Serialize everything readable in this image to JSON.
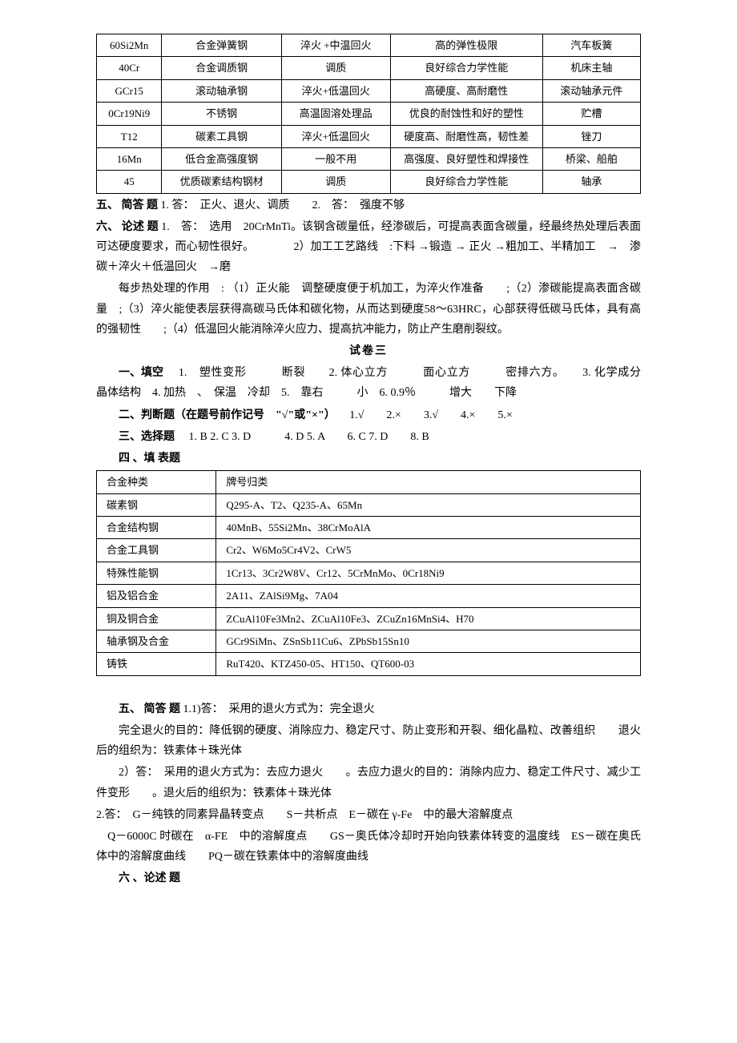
{
  "table1": {
    "rows": [
      [
        "60Si2Mn",
        "合金弹簧钢",
        "淬火 +中温回火",
        "高的弹性极限",
        "汽车板簧"
      ],
      [
        "40Cr",
        "合金调质钢",
        "调质",
        "良好综合力学性能",
        "机床主轴"
      ],
      [
        "GCr15",
        "滚动轴承钢",
        "淬火+低温回火",
        "高硬度、高耐磨性",
        "滚动轴承元件"
      ],
      [
        "0Cr19Ni9",
        "不锈钢",
        "高温固溶处理品",
        "优良的耐蚀性和好的塑性",
        "贮槽"
      ],
      [
        "T12",
        "碳素工具钢",
        "淬火+低温回火",
        "硬度高、耐磨性高，韧性差",
        "锉刀"
      ],
      [
        "16Mn",
        "低合金高强度钢",
        "一般不用",
        "高强度、良好塑性和焊接性",
        "桥梁、船舶"
      ],
      [
        "45",
        "优质碳素结构钢材",
        "调质",
        "良好综合力学性能",
        "轴承"
      ]
    ]
  },
  "sec5": {
    "title": "五、 简答 题",
    "p1a": "1. 答：　正火、退火、调质　　2.　答：　强度不够"
  },
  "sec6": {
    "title": "六、 论述 题",
    "p1": "1.　答：　选用　20CrMnTi。该钢含碳量低，经渗碳后，可提高表面含碳量，经最终热处理后表面可达硬度要求，而心韧性很好。　　　　2）加工工艺路线　:下料 →锻造 → 正火 →粗加工、半精加工　→　渗碳＋淬火＋低温回火　→磨",
    "p2": "每步热处理的作用　: （1）正火能　调整硬度便于机加工，为淬火作准备　　;（2）渗碳能提高表面含碳量　;（3）淬火能使表层获得高碳马氏体和碳化物，从而达到硬度58～63HRC，心部获得低碳马氏体，具有高的强韧性　　;（4）低温回火能消除淬火应力、提高抗冲能力，防止产生磨削裂纹。"
  },
  "paper3": {
    "header": "试卷三",
    "fill": {
      "title": "一、填空",
      "body": "　1.　塑性变形　　　断裂　　2. 体心立方　　　面心立方　　　密排六方。　　3. 化学成分　　晶体结构　4. 加热　、　保温　冷却　5.　靠右　　　小　6. 0.9％　　　增大　　下降"
    },
    "judge": {
      "title": "二、判断题（在题号前作记号　\"√\"或\"×\"）",
      "body": "　1.√　　2.×　　3.√　　4.×　　5.×"
    },
    "choice": {
      "title": "三、选择题",
      "body": "　1. B 2. C 3. D　　　4. D 5. A　　6. C 7. D　　8. B"
    },
    "tabletitle": "四 、填 表题"
  },
  "table2": {
    "header": [
      "合金种类",
      "牌号归类"
    ],
    "rows": [
      [
        "碳素钢",
        "Q295-A、T2、Q235-A、65Mn"
      ],
      [
        "合金结构钢",
        "40MnB、55Si2Mn、38CrMoAlA"
      ],
      [
        "合金工具钢",
        "Cr2、W6Mo5Cr4V2、CrW5"
      ],
      [
        "特殊性能钢",
        "1Cr13、3Cr2W8V、Cr12、5CrMnMo、0Cr18Ni9"
      ],
      [
        "铝及铝合金",
        "2A11、ZAlSi9Mg、7A04"
      ],
      [
        "铜及铜合金",
        "ZCuAl10Fe3Mn2、ZCuAl10Fe3、ZCuZn16MnSi4、H70"
      ],
      [
        "轴承钢及合金",
        "GCr9SiMn、ZSnSb11Cu6、ZPbSb15Sn10"
      ],
      [
        "铸铁",
        "RuT420、KTZ450-05、HT150、QT600-03"
      ]
    ]
  },
  "sec5b": {
    "title": "五、 简答 题",
    "p1": " 1.1)答：　采用的退火方式为：完全退火",
    "p2": "完全退火的目的：降低钢的硬度、消除应力、稳定尺寸、防止变形和开裂、细化晶粒、改善组织　　退火后的组织为：铁素体＋珠光体",
    "p3": "2）答：　采用的退火方式为：去应力退火　　。去应力退火的目的：消除内应力、稳定工件尺寸、减少工件变形　　。退火后的组织为：铁素体＋珠光体",
    "p4": "2.答：　G－纯铁的同素异晶转变点　　S－共析点　E－碳在 γ-Fe　中的最大溶解度点",
    "p5": "　Q－6000C 时碳在　α-FE　中的溶解度点　　GS－奥氏体冷却时开始向铁素体转变的温度线　ES－碳在奥氏体中的溶解度曲线　　PQ－碳在铁素体中的溶解度曲线"
  },
  "sec6b": {
    "title": "六 、论述 题"
  }
}
